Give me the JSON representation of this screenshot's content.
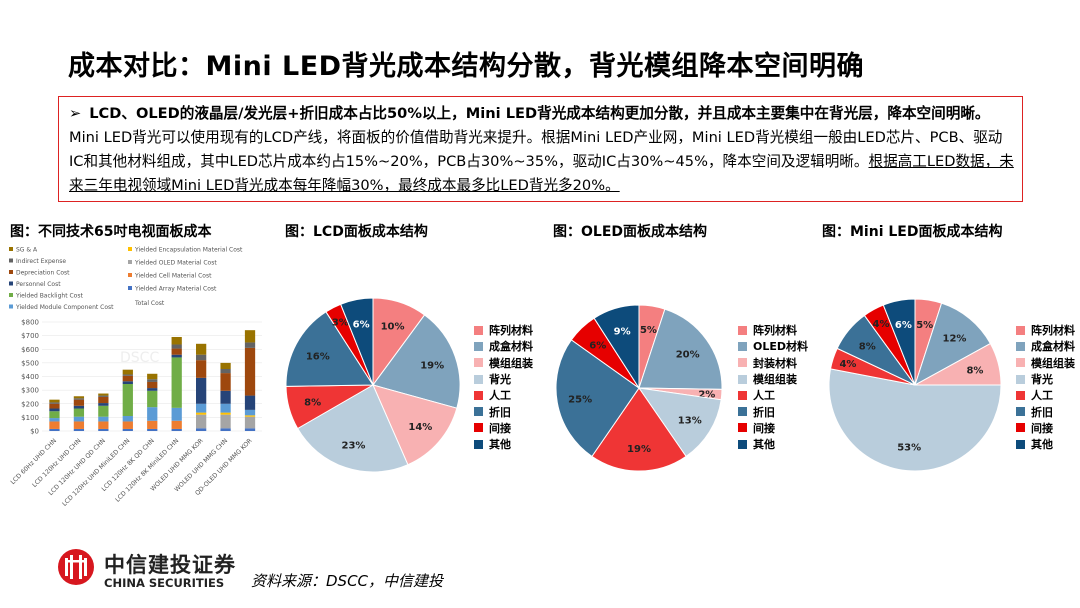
{
  "title": "成本对比：Mini LED背光成本结构分散，背光模组降本空间明确",
  "summary": {
    "bullet_icon": "arrow-right-icon",
    "bold": "LCD、OLED的液晶层/发光层+折旧成本占比50%以上，Mini LED背光成本结构更加分散，并且成本主要集中在背光层，降本空间明晰。",
    "normal": "Mini LED背光可以使用现有的LCD产线，将面板的价值借助背光来提升。根据Mini LED产业网，Mini LED背光模组一般由LED芯片、PCB、驱动IC和其他材料组成，其中LED芯片成本约占15%~20%，PCB占30%~35%，驱动IC占30%~45%，降本空间及逻辑明晰。",
    "underlined": "根据高工LED数据，未来三年电视领域Mini LED背光成本每年降幅30%，最终成本最多比LED背光多20%。"
  },
  "source": "资料来源：DSCC，中信建投",
  "logo": {
    "cn": "中信建投证券",
    "en": "CHINA SECURITIES",
    "color": "#d7171f"
  },
  "chart_data": [
    {
      "type": "bar",
      "stacked": true,
      "title": "图：不同技术65吋电视面板成本",
      "watermark": "DSCC",
      "categories": [
        "LCD 60Hz UHD CHN",
        "LCD 120Hz UHD CHN",
        "LCD 120Hz UHD QD CHN",
        "LCD 120Hz UHD MiniLED CHN",
        "LCD 120Hz 8K QD CHN",
        "LCD 120Hz 8K MiniLED CHN",
        "WOLED UHD MMG KOR",
        "WOLED UHD MMG CHN",
        "QD-OLED UHD MMG KOR"
      ],
      "yticks": [
        "$0",
        "$100",
        "$200",
        "$300",
        "$400",
        "$500",
        "$600",
        "$700",
        "$800"
      ],
      "ylim": [
        0,
        800
      ],
      "legend_extra": "Total Cost",
      "series": [
        {
          "name": "Yielded Array Material Cost",
          "color": "#4472c4",
          "values": [
            15,
            15,
            15,
            15,
            15,
            15,
            20,
            20,
            20
          ]
        },
        {
          "name": "Yielded Cell Material Cost",
          "color": "#ed7d31",
          "values": [
            55,
            55,
            55,
            55,
            60,
            60,
            0,
            0,
            0
          ]
        },
        {
          "name": "Yielded OLED Material Cost",
          "color": "#a5a5a5",
          "values": [
            0,
            0,
            0,
            0,
            0,
            0,
            100,
            100,
            85
          ]
        },
        {
          "name": "Yielded Encapsulation Material Cost",
          "color": "#ffc000",
          "values": [
            0,
            0,
            0,
            0,
            0,
            0,
            15,
            15,
            10
          ]
        },
        {
          "name": "Yielded Module Component Cost",
          "color": "#5b9bd5",
          "values": [
            25,
            35,
            35,
            40,
            100,
            95,
            65,
            65,
            40
          ]
        },
        {
          "name": "Yielded Backlight Cost",
          "color": "#70ad47",
          "values": [
            50,
            60,
            80,
            235,
            120,
            370,
            0,
            0,
            0
          ]
        },
        {
          "name": "Personnel Cost",
          "color": "#264478",
          "values": [
            20,
            20,
            20,
            20,
            20,
            20,
            190,
            95,
            105
          ]
        },
        {
          "name": "Depreciation Cost",
          "color": "#9e480e",
          "values": [
            35,
            45,
            45,
            40,
            45,
            45,
            130,
            130,
            350
          ]
        },
        {
          "name": "Indirect Expense",
          "color": "#636363",
          "values": [
            10,
            10,
            10,
            10,
            20,
            30,
            40,
            30,
            40
          ]
        },
        {
          "name": "SG & A",
          "color": "#997300",
          "values": [
            20,
            15,
            15,
            35,
            40,
            55,
            80,
            45,
            90
          ]
        }
      ]
    },
    {
      "type": "pie",
      "title": "图：LCD面板成本结构",
      "labels": [
        "阵列材料",
        "成盒材料",
        "模组组装",
        "背光",
        "人工",
        "折旧",
        "间接",
        "其他"
      ],
      "values": [
        10,
        19,
        14,
        23,
        8,
        16,
        3,
        6
      ],
      "colors": [
        "#f47f80",
        "#7fa3bd",
        "#f8b1b2",
        "#b9cddc",
        "#ef3535",
        "#3b7197",
        "#e60000",
        "#0d4b7b"
      ],
      "legend": "right"
    },
    {
      "type": "pie",
      "title": "图：OLED面板成本结构",
      "labels": [
        "阵列材料",
        "OLED材料",
        "封装材料",
        "模组组装",
        "人工",
        "折旧",
        "间接",
        "其他"
      ],
      "values": [
        5,
        20,
        2,
        13,
        19,
        25,
        6,
        9
      ],
      "colors": [
        "#f47f80",
        "#7fa3bd",
        "#f8b1b2",
        "#b9cddc",
        "#ef3535",
        "#3b7197",
        "#e60000",
        "#0d4b7b"
      ],
      "legend": "right"
    },
    {
      "type": "pie",
      "title": "图：Mini LED面板成本结构",
      "labels": [
        "阵列材料",
        "成盒材料",
        "模组组装",
        "背光",
        "人工",
        "折旧",
        "间接",
        "其他"
      ],
      "values": [
        5,
        12,
        8,
        53,
        4,
        8,
        4,
        6
      ],
      "colors": [
        "#f47f80",
        "#7fa3bd",
        "#f8b1b2",
        "#b9cddc",
        "#ef3535",
        "#3b7197",
        "#e60000",
        "#0d4b7b"
      ],
      "legend": "right"
    }
  ]
}
